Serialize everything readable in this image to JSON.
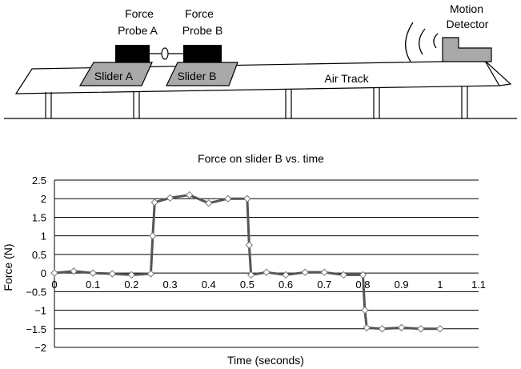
{
  "apparatus": {
    "probe_a": [
      "Force",
      "Probe A"
    ],
    "probe_b": [
      "Force",
      "Probe B"
    ],
    "detector": [
      "Motion",
      "Detector"
    ],
    "slider_a": "Slider A",
    "slider_b": "Slider B",
    "track": "Air Track"
  },
  "chart_data": {
    "type": "line",
    "title": "Force on slider B vs. time",
    "xlabel": "Time (seconds)",
    "ylabel": "Force (N)",
    "xlim": [
      0,
      1.1
    ],
    "ylim": [
      -2,
      2.5
    ],
    "x_ticks": [
      "0",
      "0.1",
      "0.2",
      "0.3",
      "0.4",
      "0.5",
      "0.6",
      "0.7",
      "0.8",
      "0.9",
      "1",
      "1.1"
    ],
    "y_ticks": [
      "2.5",
      "2",
      "1.5",
      "1",
      "0.5",
      "0",
      "−0.5",
      "−1",
      "−1.5",
      "−2"
    ],
    "y_tick_values": [
      2.5,
      2,
      1.5,
      1,
      0.5,
      0,
      -0.5,
      -1,
      -1.5,
      -2
    ],
    "grid": "horizontal",
    "line_color": "#555555",
    "marker": "diamond",
    "series": [
      {
        "x": [
          0,
          0.05,
          0.1,
          0.15,
          0.2,
          0.25,
          0.255,
          0.26,
          0.3,
          0.35,
          0.4,
          0.45,
          0.5,
          0.505,
          0.51,
          0.55,
          0.6,
          0.65,
          0.7,
          0.75,
          0.8,
          0.805,
          0.81,
          0.85,
          0.9,
          0.95,
          1.0
        ],
        "y": [
          0,
          0.05,
          0,
          -0.02,
          -0.05,
          -0.02,
          1.0,
          1.9,
          2.02,
          2.1,
          1.88,
          2.0,
          2.0,
          0.75,
          -0.05,
          0.02,
          -0.05,
          0.02,
          0.02,
          -0.05,
          -0.05,
          -1.0,
          -1.47,
          -1.5,
          -1.47,
          -1.5,
          -1.5
        ]
      }
    ]
  }
}
